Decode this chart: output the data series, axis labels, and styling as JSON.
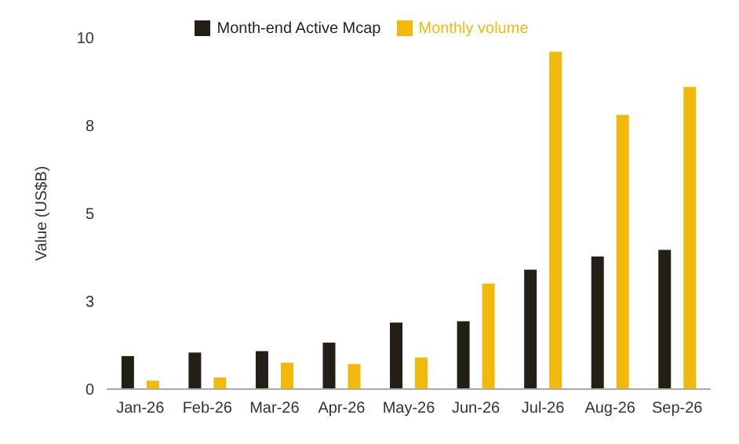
{
  "chart_data": {
    "type": "bar",
    "ylabel": "Value (US$B)",
    "categories": [
      "Jan-26",
      "Feb-26",
      "Mar-26",
      "Apr-26",
      "May-26",
      "Jun-26",
      "Jul-26",
      "Aug-26",
      "Sep-26"
    ],
    "series": [
      {
        "name": "Month-end Active Mcap",
        "color": "#231f16",
        "values": [
          0.94,
          1.04,
          1.08,
          1.32,
          1.89,
          1.93,
          3.4,
          3.77,
          3.96
        ]
      },
      {
        "name": "Monthly volume",
        "color": "#f0b90b",
        "values": [
          0.24,
          0.33,
          0.75,
          0.71,
          0.9,
          3.0,
          9.6,
          7.8,
          8.6
        ]
      }
    ],
    "ylim": [
      0,
      10
    ],
    "yticks": [
      0,
      {
        "value": 2.5,
        "label": "3"
      },
      5,
      {
        "value": 7.5,
        "label": "8"
      },
      10
    ],
    "legend": "top",
    "grid": false
  }
}
